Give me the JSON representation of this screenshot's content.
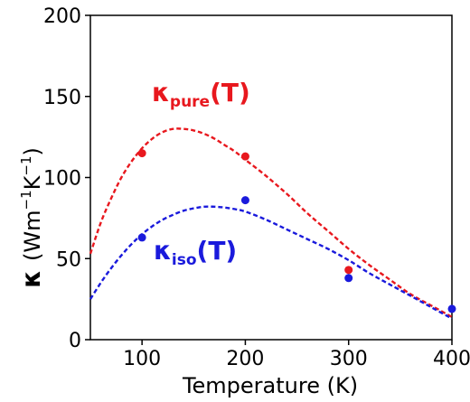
{
  "chart_data": {
    "type": "line",
    "xlabel": "Temperature (K)",
    "ylabel": {
      "symbol": "κ",
      "units": "(Wm",
      "exp1": "−1",
      "mid": "K",
      "exp2": "−1",
      "close": ")"
    },
    "xlim": [
      50,
      400
    ],
    "ylim": [
      0,
      200
    ],
    "xticks": [
      100,
      200,
      300,
      400
    ],
    "yticks": [
      0,
      50,
      100,
      150,
      200
    ],
    "grid": false,
    "colors": {
      "pure": "#e8181e",
      "iso": "#1a1adc"
    },
    "annotations": [
      {
        "symbol": "κ",
        "subscript": "pure",
        "suffix": "(T)",
        "series": "pure"
      },
      {
        "symbol": "κ",
        "subscript": "iso",
        "suffix": "(T)",
        "series": "iso"
      }
    ],
    "series": [
      {
        "key": "pure",
        "style": "dashed",
        "x": [
          50,
          60,
          70,
          80,
          90,
          100,
          110,
          120,
          130,
          140,
          150,
          160,
          170,
          180,
          190,
          200,
          220,
          240,
          260,
          280,
          300,
          320,
          340,
          360,
          380,
          400
        ],
        "y": [
          53,
          72,
          87,
          100,
          110,
          118,
          124,
          128,
          130,
          130,
          129,
          127,
          124,
          120,
          116,
          111,
          101,
          90,
          78,
          67,
          56,
          46,
          37,
          28,
          21,
          14
        ]
      },
      {
        "key": "iso",
        "style": "dashed",
        "x": [
          50,
          60,
          70,
          80,
          90,
          100,
          110,
          120,
          130,
          140,
          150,
          160,
          170,
          180,
          190,
          200,
          220,
          240,
          260,
          280,
          300,
          320,
          340,
          360,
          380,
          400
        ],
        "y": [
          25,
          35,
          44,
          52,
          59,
          65,
          70,
          74,
          77,
          79.5,
          81,
          82,
          82,
          81.5,
          80.5,
          79,
          74,
          68,
          62,
          56,
          49,
          41,
          34,
          27,
          20,
          13
        ]
      }
    ],
    "points": [
      {
        "key": "pure",
        "x": [
          100,
          200,
          300
        ],
        "y": [
          115,
          113,
          43
        ]
      },
      {
        "key": "iso",
        "x": [
          100,
          200,
          300,
          400
        ],
        "y": [
          63,
          86,
          38,
          19
        ]
      }
    ]
  }
}
